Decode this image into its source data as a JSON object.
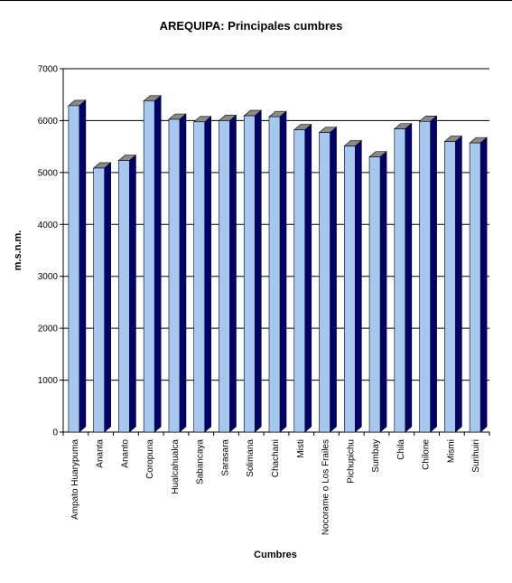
{
  "chart_data": {
    "type": "bar",
    "title": "AREQUIPA: Principales cumbres",
    "xlabel": "Cumbres",
    "ylabel": "m.s.n.m.",
    "ylim": [
      0,
      7000
    ],
    "yticks": [
      "0",
      "1000",
      "2000",
      "3000",
      "4000",
      "5000",
      "6000",
      "7000"
    ],
    "grid": "horizontal",
    "bar_style": "3d",
    "colors": {
      "front": "#a6c8f0",
      "side": "#00006e",
      "top": "#8a8a8a",
      "grid": "#000000"
    },
    "categories": [
      "Ampato Huarypuma",
      "Ananta",
      "Ananto",
      "Coropuna",
      "Hualcahualca",
      "Sabancaya",
      "Sarasara",
      "Solimana",
      "Chachani",
      "Misti",
      "Nocorame o Los Frailes",
      "Pichupichu",
      "Sumbay",
      "Chila",
      "Chilone",
      "Mismi",
      "Surihuiri"
    ],
    "values": [
      6288,
      5085,
      5230,
      6377,
      6025,
      5976,
      5999,
      6093,
      6075,
      5822,
      5770,
      5510,
      5300,
      5840,
      5985,
      5597,
      5570
    ]
  }
}
